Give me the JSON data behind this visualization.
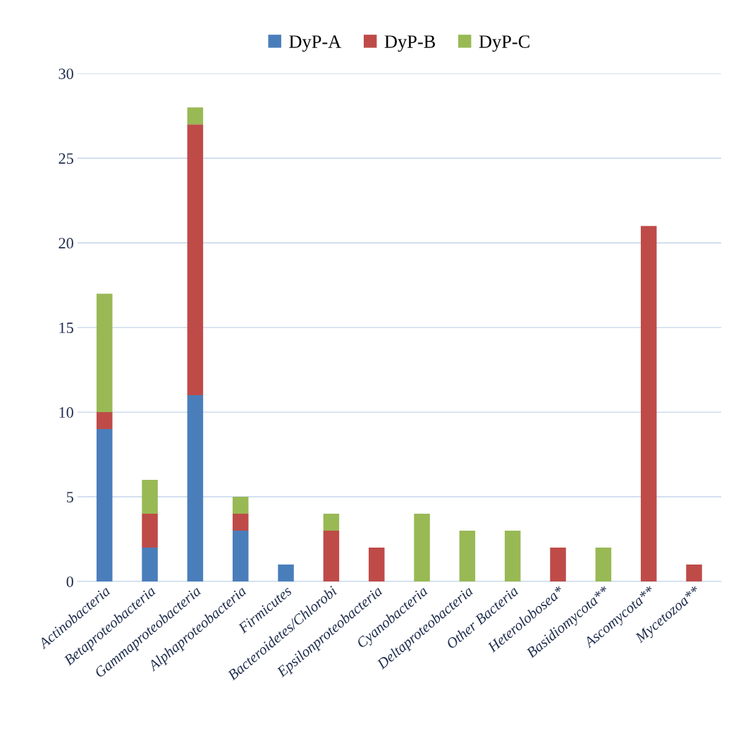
{
  "chart_data": {
    "type": "bar",
    "stacked": true,
    "categories": [
      "Actinobacteria",
      "Betaproteobacteria",
      "Gammaproteobacteria",
      "Alphaproteobacteria",
      "Firmicutes",
      "Bacteroidetes/Chlorobi",
      "Epsilonproteobacteria",
      "Cyanobacteria",
      "Deltaproteobacteria",
      "Other Bacteria",
      "Heterolobosea*",
      "Basidiomycota**",
      "Ascomycota**",
      "Mycetozoa**"
    ],
    "series": [
      {
        "name": "DyP-A",
        "color": "#4a7ebb",
        "values": [
          9,
          2,
          11,
          3,
          1,
          0,
          0,
          0,
          0,
          0,
          0,
          0,
          0,
          0
        ]
      },
      {
        "name": "DyP-B",
        "color": "#be4b48",
        "values": [
          1,
          2,
          16,
          1,
          0,
          3,
          2,
          0,
          0,
          0,
          2,
          0,
          21,
          1
        ]
      },
      {
        "name": "DyP-C",
        "color": "#98b954",
        "values": [
          7,
          2,
          1,
          1,
          0,
          1,
          0,
          4,
          3,
          3,
          0,
          2,
          0,
          0
        ]
      }
    ],
    "ylim": [
      0,
      30
    ],
    "yticks": [
      0,
      5,
      10,
      15,
      20,
      25,
      30
    ],
    "grid": "y",
    "legend": "top"
  }
}
